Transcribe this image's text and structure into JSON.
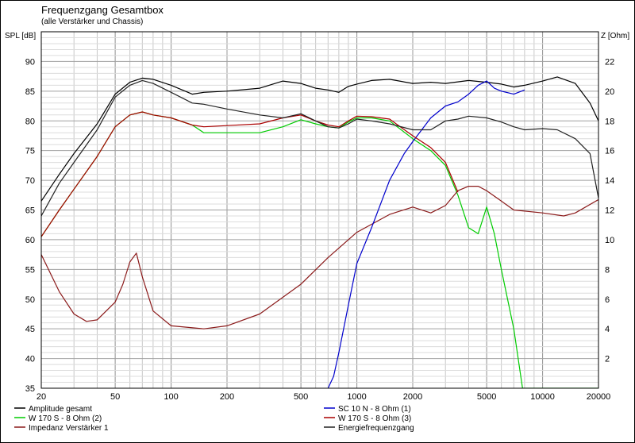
{
  "chart_data": {
    "type": "line",
    "title": "Frequenzgang Gesamtbox",
    "subtitle": "(alle Verstärker und Chassis)",
    "ylabel_left": "SPL [dB]",
    "ylabel_right": "Z [Ohm]",
    "x_scale": "log",
    "xlim": [
      20,
      20000
    ],
    "ylim_left": [
      35,
      95
    ],
    "ylim_right": [
      0,
      24
    ],
    "x_ticks": [
      20,
      50,
      100,
      200,
      500,
      1000,
      2000,
      5000,
      10000,
      20000
    ],
    "x_tick_labels": [
      "20",
      "50",
      "100",
      "200",
      "500",
      "1000",
      "2000",
      "5000",
      "10000",
      "20000"
    ],
    "y_left_ticks": [
      35,
      40,
      45,
      50,
      55,
      60,
      65,
      70,
      75,
      80,
      85,
      90
    ],
    "y_right_ticks": [
      2,
      4,
      6,
      8,
      10,
      12,
      14,
      16,
      18,
      20,
      22
    ],
    "grid": true,
    "series": [
      {
        "name": "Amplitude gesamt",
        "color": "#000000",
        "axis": "left",
        "x": [
          20,
          25,
          30,
          40,
          50,
          60,
          70,
          80,
          100,
          130,
          150,
          200,
          300,
          400,
          500,
          600,
          700,
          800,
          900,
          1000,
          1200,
          1500,
          2000,
          2500,
          3000,
          4000,
          5000,
          6000,
          7000,
          8000,
          10000,
          12000,
          15000,
          18000,
          20000
        ],
        "y": [
          66.5,
          71,
          74.5,
          79.5,
          84.5,
          86.5,
          87.2,
          87,
          86,
          84.5,
          84.8,
          85,
          85.5,
          86.7,
          86.3,
          85.5,
          85.2,
          84.8,
          85.8,
          86.2,
          86.8,
          87,
          86.3,
          86.5,
          86.3,
          86.8,
          86.5,
          86.2,
          85.7,
          86,
          86.7,
          87.4,
          86.3,
          83,
          80
        ]
      },
      {
        "name": "W 170 S - 8 Ohm (2)",
        "color": "#00cc00",
        "axis": "left",
        "x": [
          20,
          25,
          30,
          40,
          50,
          60,
          70,
          80,
          100,
          130,
          150,
          200,
          300,
          400,
          500,
          600,
          700,
          800,
          900,
          1000,
          1200,
          1500,
          2000,
          2500,
          3000,
          3500,
          4000,
          4500,
          5000,
          5500,
          6000,
          7000,
          7800,
          8000,
          10000,
          15000,
          20000
        ],
        "y": [
          60.5,
          65,
          68.5,
          74,
          79,
          81,
          81.5,
          81,
          80.5,
          79.3,
          78,
          78,
          78,
          79,
          80.2,
          79.5,
          79,
          78.8,
          79.8,
          80.5,
          80.5,
          80,
          77,
          75,
          72.5,
          67.5,
          62,
          61,
          65.5,
          61,
          55,
          45,
          35,
          35,
          35,
          35,
          35
        ]
      },
      {
        "name": "Impedanz Verstärker 1",
        "color": "#8b1a1a",
        "axis": "right",
        "x": [
          20,
          25,
          30,
          35,
          40,
          50,
          55,
          60,
          65,
          70,
          80,
          100,
          150,
          200,
          300,
          500,
          700,
          1000,
          1500,
          2000,
          2500,
          3000,
          3500,
          4000,
          4500,
          5000,
          6000,
          7000,
          10000,
          13000,
          15000,
          20000
        ],
        "y": [
          9,
          6.5,
          5,
          4.5,
          4.6,
          5.8,
          7,
          8.5,
          9.1,
          7.5,
          5.2,
          4.2,
          4,
          4.2,
          5,
          7,
          8.8,
          10.5,
          11.7,
          12.2,
          11.8,
          12.3,
          13.3,
          13.6,
          13.6,
          13.3,
          12.6,
          12,
          11.8,
          11.6,
          11.8,
          12.7
        ]
      },
      {
        "name": "SC 10 N - 8 Ohm (1)",
        "color": "#0000cc",
        "axis": "left",
        "x": [
          700,
          750,
          800,
          900,
          1000,
          1200,
          1500,
          1800,
          2000,
          2500,
          3000,
          3500,
          4000,
          4500,
          5000,
          5500,
          6000,
          7000,
          8000
        ],
        "y": [
          35,
          37,
          41,
          49,
          56,
          62,
          70,
          74.5,
          76.5,
          80.5,
          82.5,
          83.2,
          84.5,
          86,
          86.7,
          85.5,
          85,
          84.5,
          85.2
        ]
      },
      {
        "name": "W 170 S - 8 Ohm (3)",
        "color": "#aa0000",
        "axis": "left",
        "x": [
          20,
          25,
          30,
          40,
          50,
          60,
          70,
          80,
          100,
          130,
          150,
          200,
          300,
          400,
          500,
          600,
          700,
          800,
          900,
          1000,
          1200,
          1500,
          2000,
          2500,
          3000,
          3500
        ],
        "y": [
          60.5,
          65,
          68.5,
          74,
          79,
          81,
          81.5,
          81,
          80.5,
          79.3,
          79,
          79.2,
          79.5,
          80.5,
          81,
          80,
          79.3,
          79,
          80,
          80.8,
          80.7,
          80.3,
          77.5,
          75.5,
          73,
          68
        ]
      },
      {
        "name": "Energiefrequenzgang",
        "color": "#222222",
        "axis": "left",
        "x": [
          20,
          25,
          30,
          40,
          50,
          60,
          70,
          80,
          100,
          130,
          150,
          200,
          300,
          400,
          500,
          600,
          700,
          800,
          900,
          1000,
          1200,
          1500,
          2000,
          2500,
          3000,
          3500,
          4000,
          5000,
          6000,
          7000,
          8000,
          10000,
          12000,
          15000,
          18000,
          20000
        ],
        "y": [
          64,
          69.5,
          73,
          78.5,
          84,
          86,
          86.8,
          86.3,
          84.8,
          83,
          82.8,
          82,
          81,
          80.5,
          81.2,
          80,
          79,
          78.8,
          79.5,
          80.3,
          80,
          79.5,
          78.5,
          78.5,
          80,
          80.3,
          80.8,
          80.5,
          79.8,
          79,
          78.5,
          78.7,
          78.5,
          77,
          74.5,
          67
        ]
      }
    ],
    "legend": {
      "placement": "bottom",
      "entries": [
        {
          "label": "Amplitude gesamt",
          "color": "#000000"
        },
        {
          "label": "SC 10 N - 8 Ohm (1)",
          "color": "#0000cc"
        },
        {
          "label": "W 170 S - 8 Ohm (2)",
          "color": "#00cc00"
        },
        {
          "label": "W 170 S - 8 Ohm (3)",
          "color": "#aa0000"
        },
        {
          "label": "Impedanz Verstärker 1",
          "color": "#8b1a1a"
        },
        {
          "label": "Energiefrequenzgang",
          "color": "#222222"
        }
      ]
    }
  }
}
